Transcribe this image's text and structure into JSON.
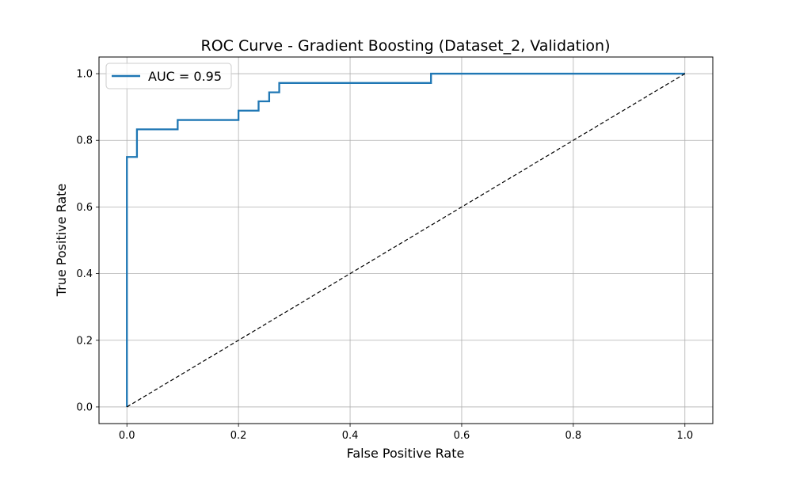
{
  "chart_data": {
    "type": "line",
    "title": "ROC Curve - Gradient Boosting (Dataset_2, Validation)",
    "xlabel": "False Positive Rate",
    "ylabel": "True Positive Rate",
    "xlim": [
      -0.05,
      1.05
    ],
    "ylim": [
      -0.05,
      1.05
    ],
    "xticks": [
      0.0,
      0.2,
      0.4,
      0.6,
      0.8,
      1.0
    ],
    "yticks": [
      0.0,
      0.2,
      0.4,
      0.6,
      0.8,
      1.0
    ],
    "xtick_labels": [
      "0.0",
      "0.2",
      "0.4",
      "0.6",
      "0.8",
      "1.0"
    ],
    "ytick_labels": [
      "0.0",
      "0.2",
      "0.4",
      "0.6",
      "0.8",
      "1.0"
    ],
    "grid": true,
    "legend_position": "top-left",
    "series": [
      {
        "name": "AUC = 0.95",
        "color": "#1f77b4",
        "style": "solid",
        "step": true,
        "x": [
          0.0,
          0.0,
          0.018,
          0.018,
          0.091,
          0.091,
          0.2,
          0.2,
          0.236,
          0.236,
          0.255,
          0.255,
          0.273,
          0.273,
          0.545,
          0.545,
          1.0
        ],
        "y": [
          0.0,
          0.75,
          0.75,
          0.833,
          0.833,
          0.861,
          0.861,
          0.889,
          0.889,
          0.917,
          0.917,
          0.944,
          0.944,
          0.972,
          0.972,
          1.0,
          1.0
        ]
      },
      {
        "color": "#000000",
        "style": "dashed",
        "x": [
          0.0,
          1.0
        ],
        "y": [
          0.0,
          1.0
        ]
      }
    ]
  }
}
